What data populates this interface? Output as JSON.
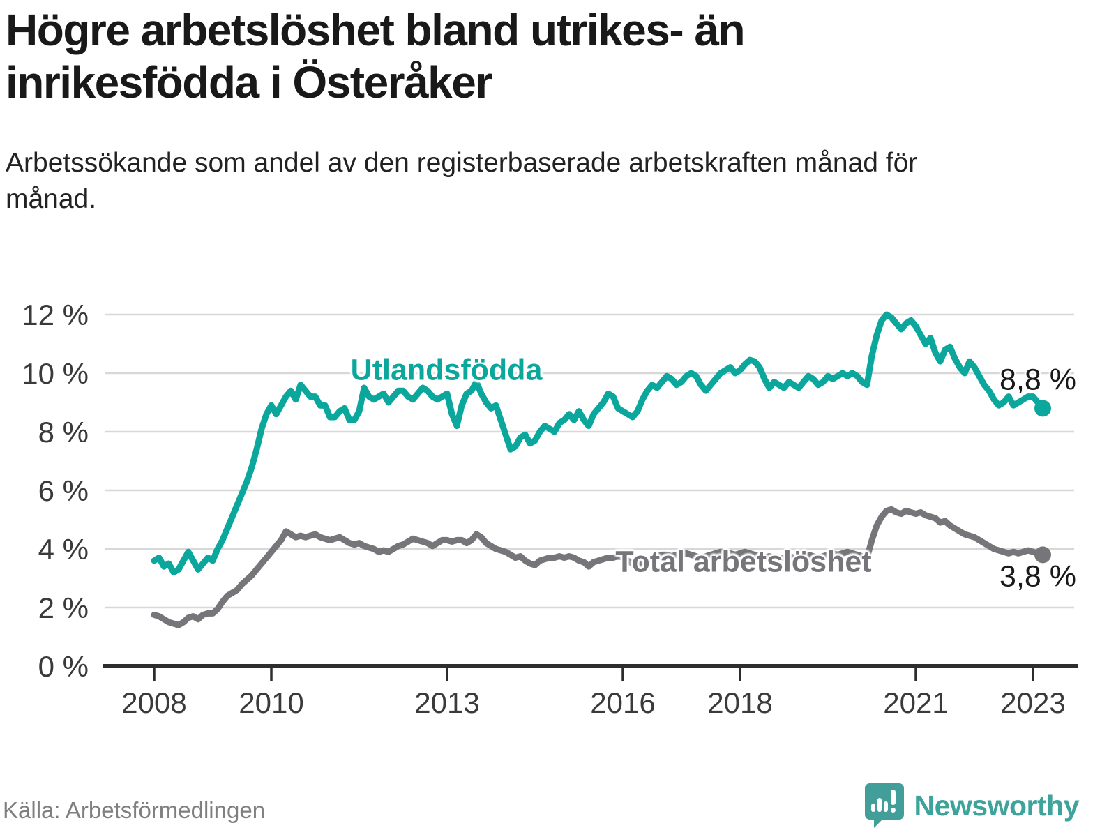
{
  "header": {
    "title": "Högre arbetslöshet bland utrikes- än inrikesfödda i Österåker",
    "subtitle": "Arbetssökande som andel av den registerbaserade arbetskraften månad för månad."
  },
  "footer": {
    "source": "Källa: Arbetsförmedlingen",
    "brand": "Newsworthy"
  },
  "colors": {
    "teal_line": "#0ca79c",
    "gray_line": "#76757a",
    "axis": "#2d2d2d",
    "grid": "#d8d8d8",
    "tick_text": "#3a3a3a",
    "logo": "#419e98"
  },
  "chart_data": {
    "type": "line",
    "x_unit": "month",
    "x_start": "2008-01",
    "x_end": "2023-03",
    "ylim": [
      0,
      12.4
    ],
    "grid": true,
    "y_ticks": [
      {
        "value": 0,
        "label": "0 %"
      },
      {
        "value": 2,
        "label": "2 %"
      },
      {
        "value": 4,
        "label": "4 %"
      },
      {
        "value": 6,
        "label": "6 %"
      },
      {
        "value": 8,
        "label": "8 %"
      },
      {
        "value": 10,
        "label": "10 %"
      },
      {
        "value": 12,
        "label": "12 %"
      }
    ],
    "x_ticks": [
      {
        "value": 2008,
        "label": "2008"
      },
      {
        "value": 2010,
        "label": "2010"
      },
      {
        "value": 2013,
        "label": "2013"
      },
      {
        "value": 2016,
        "label": "2016"
      },
      {
        "value": 2018,
        "label": "2018"
      },
      {
        "value": 2021,
        "label": "2021"
      },
      {
        "value": 2023,
        "label": "2023"
      }
    ],
    "series": [
      {
        "name": "Utlandsfödda",
        "color": "#0ca79c",
        "end_label": "8,8 %",
        "end_value": 8.8,
        "values": [
          3.6,
          3.7,
          3.4,
          3.5,
          3.2,
          3.3,
          3.6,
          3.9,
          3.6,
          3.3,
          3.5,
          3.7,
          3.6,
          4.0,
          4.3,
          4.7,
          5.1,
          5.5,
          5.9,
          6.3,
          6.8,
          7.4,
          8.1,
          8.6,
          8.9,
          8.6,
          8.9,
          9.2,
          9.4,
          9.1,
          9.6,
          9.4,
          9.2,
          9.2,
          8.9,
          8.9,
          8.5,
          8.5,
          8.7,
          8.8,
          8.4,
          8.4,
          8.7,
          9.5,
          9.2,
          9.1,
          9.2,
          9.3,
          9.0,
          9.2,
          9.4,
          9.4,
          9.2,
          9.1,
          9.3,
          9.5,
          9.4,
          9.2,
          9.1,
          9.2,
          9.3,
          8.6,
          8.2,
          8.9,
          9.3,
          9.4,
          9.7,
          9.3,
          9.0,
          8.8,
          8.9,
          8.4,
          7.9,
          7.4,
          7.5,
          7.8,
          7.9,
          7.6,
          7.7,
          8.0,
          8.2,
          8.1,
          8.0,
          8.3,
          8.4,
          8.6,
          8.4,
          8.7,
          8.4,
          8.2,
          8.6,
          8.8,
          9.0,
          9.3,
          9.2,
          8.8,
          8.7,
          8.6,
          8.5,
          8.7,
          9.1,
          9.4,
          9.6,
          9.5,
          9.7,
          9.9,
          9.8,
          9.6,
          9.7,
          9.9,
          10.0,
          9.9,
          9.6,
          9.4,
          9.6,
          9.8,
          10.0,
          10.1,
          10.2,
          10.0,
          10.1,
          10.3,
          10.45,
          10.4,
          10.2,
          9.8,
          9.5,
          9.7,
          9.6,
          9.5,
          9.7,
          9.6,
          9.5,
          9.7,
          9.9,
          9.8,
          9.6,
          9.7,
          9.9,
          9.8,
          9.9,
          10.0,
          9.9,
          10.0,
          9.9,
          9.7,
          9.6,
          10.6,
          11.3,
          11.8,
          12.0,
          11.9,
          11.7,
          11.5,
          11.7,
          11.8,
          11.6,
          11.3,
          11.0,
          11.2,
          10.7,
          10.4,
          10.8,
          10.9,
          10.5,
          10.2,
          10.0,
          10.4,
          10.2,
          9.9,
          9.6,
          9.4,
          9.1,
          8.9,
          9.0,
          9.2,
          8.9,
          9.0,
          9.1,
          9.2,
          9.2,
          9.0,
          8.8
        ]
      },
      {
        "name": "Total arbetslöshet",
        "color": "#76757a",
        "end_label": "3,8 %",
        "end_value": 3.8,
        "values": [
          1.75,
          1.7,
          1.6,
          1.5,
          1.45,
          1.4,
          1.5,
          1.65,
          1.7,
          1.6,
          1.75,
          1.8,
          1.8,
          1.95,
          2.2,
          2.4,
          2.5,
          2.6,
          2.8,
          2.95,
          3.1,
          3.3,
          3.5,
          3.7,
          3.9,
          4.1,
          4.3,
          4.6,
          4.5,
          4.4,
          4.45,
          4.4,
          4.45,
          4.5,
          4.4,
          4.35,
          4.3,
          4.35,
          4.4,
          4.3,
          4.2,
          4.15,
          4.2,
          4.1,
          4.05,
          4.0,
          3.9,
          3.95,
          3.9,
          4.0,
          4.1,
          4.15,
          4.25,
          4.35,
          4.3,
          4.25,
          4.2,
          4.1,
          4.2,
          4.3,
          4.3,
          4.25,
          4.3,
          4.3,
          4.2,
          4.3,
          4.5,
          4.4,
          4.2,
          4.1,
          4.0,
          3.95,
          3.9,
          3.8,
          3.7,
          3.75,
          3.6,
          3.5,
          3.45,
          3.6,
          3.65,
          3.7,
          3.7,
          3.75,
          3.7,
          3.75,
          3.7,
          3.6,
          3.55,
          3.4,
          3.55,
          3.6,
          3.65,
          3.7,
          3.7,
          3.75,
          3.7,
          3.6,
          3.5,
          3.4,
          3.55,
          3.6,
          3.7,
          3.75,
          3.8,
          3.8,
          3.75,
          3.8,
          3.8,
          3.85,
          3.8,
          3.75,
          3.7,
          3.75,
          3.8,
          3.85,
          3.9,
          3.9,
          3.85,
          3.8,
          3.85,
          3.9,
          3.85,
          3.8,
          3.75,
          3.7,
          3.75,
          3.7,
          3.65,
          3.7,
          3.75,
          3.7,
          3.7,
          3.75,
          3.8,
          3.75,
          3.7,
          3.75,
          3.8,
          3.85,
          3.8,
          3.85,
          3.9,
          3.85,
          3.8,
          3.75,
          3.7,
          4.3,
          4.8,
          5.1,
          5.3,
          5.35,
          5.25,
          5.2,
          5.3,
          5.25,
          5.2,
          5.25,
          5.15,
          5.1,
          5.05,
          4.9,
          4.95,
          4.8,
          4.7,
          4.6,
          4.5,
          4.45,
          4.4,
          4.3,
          4.2,
          4.1,
          4.0,
          3.95,
          3.9,
          3.85,
          3.9,
          3.85,
          3.9,
          3.95,
          3.9,
          3.85,
          3.8
        ]
      }
    ]
  }
}
